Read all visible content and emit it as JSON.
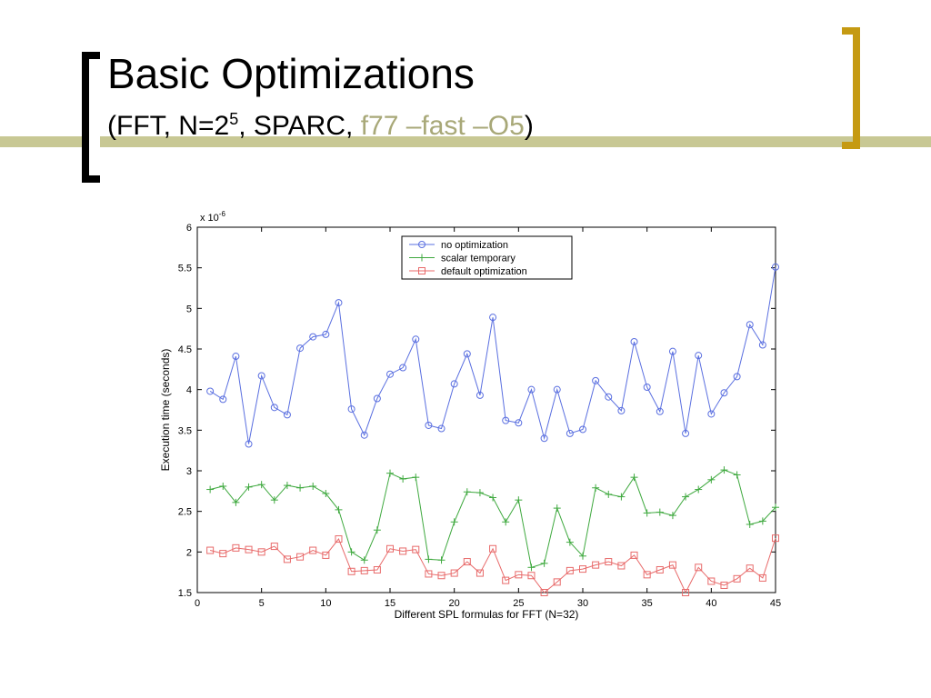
{
  "slide": {
    "title": "Basic Optimizations",
    "subtitle_prefix": "(FFT, N=2",
    "subtitle_exp": "5",
    "subtitle_mid": ", SPARC,  ",
    "subtitle_accent": "f77 –fast –O5",
    "subtitle_suffix": ")",
    "colors": {
      "bar": "#c8c894",
      "bracket_right": "#c59a12",
      "accent_text": "#a8a878"
    }
  },
  "chart_data": {
    "type": "line",
    "title": "",
    "xlabel": "Different SPL formulas for FFT (N=32)",
    "ylabel": "Execution time (seconds)",
    "y_exponent_label": "x 10",
    "y_exponent": "-6",
    "xlim": [
      0,
      45
    ],
    "ylim": [
      1.5,
      6
    ],
    "x_ticks": [
      0,
      5,
      10,
      15,
      20,
      25,
      30,
      35,
      40,
      45
    ],
    "y_ticks": [
      1.5,
      2,
      2.5,
      3,
      3.5,
      4,
      4.5,
      5,
      5.5,
      6
    ],
    "grid": false,
    "legend_position": "top-right",
    "x": [
      1,
      2,
      3,
      4,
      5,
      6,
      7,
      8,
      9,
      10,
      11,
      12,
      13,
      14,
      15,
      16,
      17,
      18,
      19,
      20,
      21,
      22,
      23,
      24,
      25,
      26,
      27,
      28,
      29,
      30,
      31,
      32,
      33,
      34,
      35,
      36,
      37,
      38,
      39,
      40,
      41,
      42,
      43,
      44,
      45
    ],
    "series": [
      {
        "name": "no optimization",
        "color": "#5a6fe0",
        "marker": "circle",
        "values": [
          3.98,
          3.88,
          4.41,
          3.33,
          4.17,
          3.78,
          3.69,
          4.51,
          4.65,
          4.68,
          5.07,
          3.76,
          3.44,
          3.89,
          4.19,
          4.27,
          4.62,
          3.56,
          3.52,
          4.07,
          4.44,
          3.93,
          4.89,
          3.62,
          3.59,
          4.0,
          3.4,
          4.0,
          3.46,
          3.51,
          4.11,
          3.91,
          3.74,
          4.59,
          4.03,
          3.73,
          4.47,
          3.46,
          4.42,
          3.7,
          3.96,
          4.16,
          4.8,
          4.55,
          5.51
        ]
      },
      {
        "name": "scalar temporary",
        "color": "#3fa93f",
        "marker": "plus",
        "values": [
          2.77,
          2.81,
          2.61,
          2.8,
          2.83,
          2.64,
          2.82,
          2.79,
          2.81,
          2.72,
          2.52,
          2.0,
          1.9,
          2.27,
          2.97,
          2.9,
          2.92,
          1.91,
          1.9,
          2.37,
          2.74,
          2.73,
          2.67,
          2.37,
          2.64,
          1.81,
          1.86,
          2.54,
          2.12,
          1.95,
          2.79,
          2.71,
          2.68,
          2.92,
          2.48,
          2.49,
          2.45,
          2.68,
          2.77,
          2.89,
          3.01,
          2.95,
          2.34,
          2.38,
          2.55
        ]
      },
      {
        "name": "default optimization",
        "color": "#e86a6a",
        "marker": "square",
        "values": [
          2.02,
          1.98,
          2.05,
          2.03,
          2.0,
          2.07,
          1.91,
          1.94,
          2.02,
          1.96,
          2.16,
          1.76,
          1.77,
          1.78,
          2.04,
          2.01,
          2.03,
          1.73,
          1.71,
          1.74,
          1.88,
          1.74,
          2.04,
          1.65,
          1.72,
          1.71,
          1.5,
          1.63,
          1.77,
          1.79,
          1.84,
          1.88,
          1.83,
          1.96,
          1.72,
          1.78,
          1.84,
          1.5,
          1.81,
          1.64,
          1.59,
          1.67,
          1.8,
          1.68,
          2.17
        ]
      }
    ]
  }
}
